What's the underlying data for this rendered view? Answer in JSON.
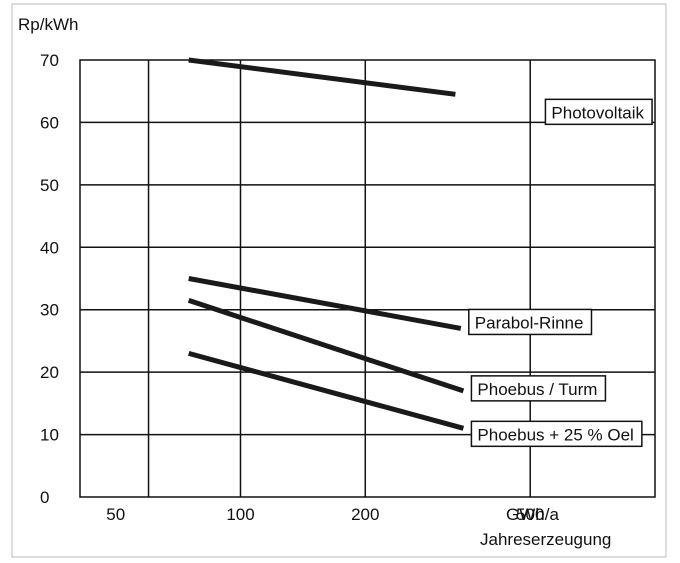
{
  "chart_data": {
    "type": "line",
    "x_scale": "log",
    "ylabel": "Rp/kWh",
    "xlabel": "Jahreserzeugung",
    "x_unit": "GWh/a",
    "x_ticks": [
      50,
      100,
      200,
      500
    ],
    "x_tick_labels": [
      "50",
      "100",
      "200",
      "500"
    ],
    "y_ticks": [
      0,
      10,
      20,
      30,
      40,
      50,
      60,
      70
    ],
    "y_tick_labels": [
      "0",
      "10",
      "20",
      "30",
      "40",
      "50",
      "60",
      "70"
    ],
    "ylim": [
      0,
      70
    ],
    "xlim": [
      41,
      1000
    ],
    "grid": true,
    "legend": "inline labels at line ends",
    "series": [
      {
        "name": "Photovoltaik",
        "x": [
          75,
          330
        ],
        "y": [
          70,
          64.5
        ]
      },
      {
        "name": "Parabol-Rinne",
        "x": [
          75,
          340
        ],
        "y": [
          35,
          27
        ]
      },
      {
        "name": "Phoebus / Turm",
        "x": [
          75,
          345
        ],
        "y": [
          31.5,
          17
        ]
      },
      {
        "name": "Phoebus + 25 % Oel",
        "x": [
          75,
          345
        ],
        "y": [
          23,
          11
        ]
      }
    ]
  }
}
